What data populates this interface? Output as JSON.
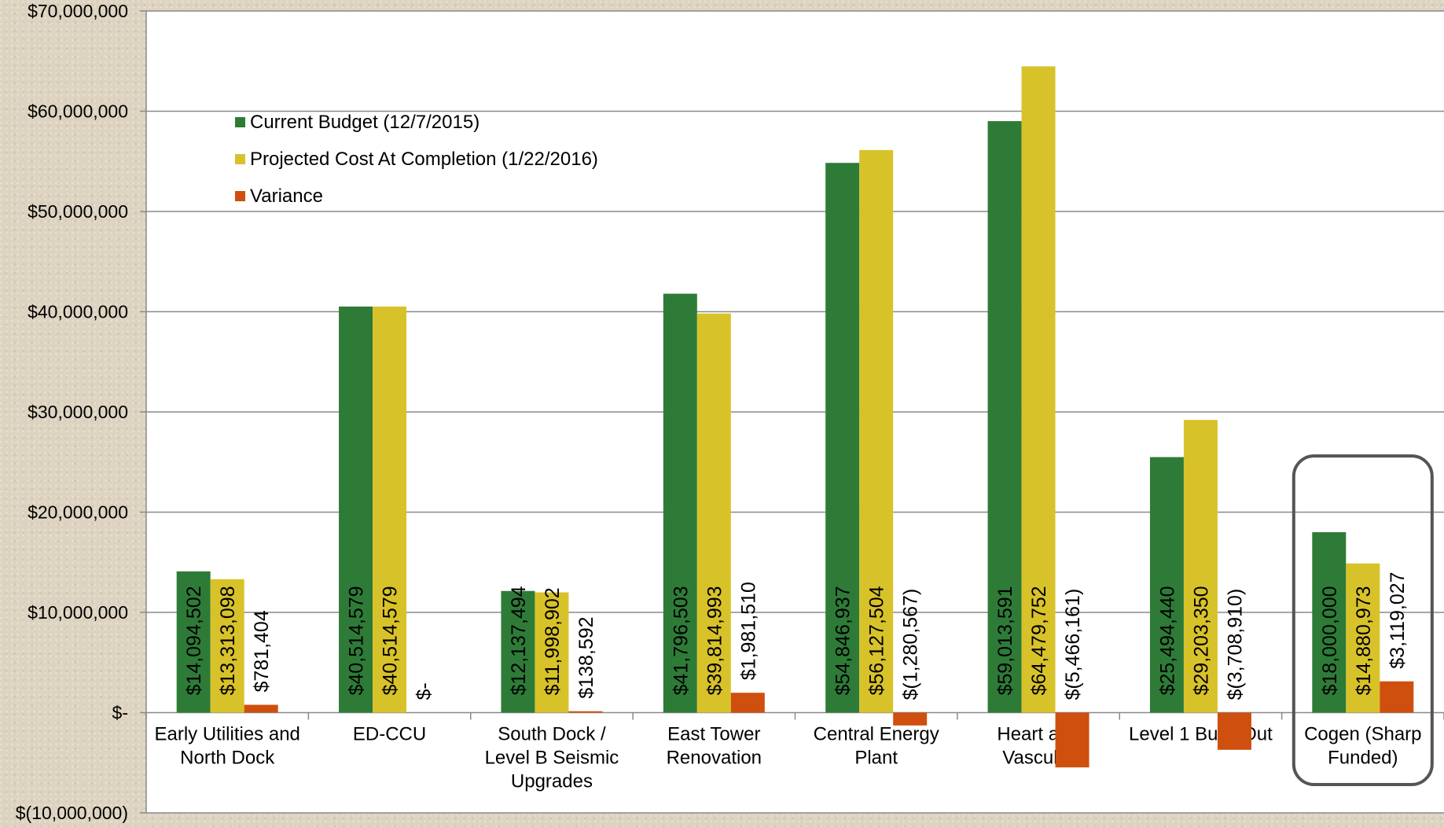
{
  "chart_data": {
    "type": "bar",
    "title": "",
    "xlabel": "",
    "ylabel": "",
    "ylim": [
      -10000000,
      70000000
    ],
    "y_ticks": [
      {
        "value": 70000000,
        "label": "$70,000,000"
      },
      {
        "value": 60000000,
        "label": "$60,000,000"
      },
      {
        "value": 50000000,
        "label": "$50,000,000"
      },
      {
        "value": 40000000,
        "label": "$40,000,000"
      },
      {
        "value": 30000000,
        "label": "$30,000,000"
      },
      {
        "value": 20000000,
        "label": "$20,000,000"
      },
      {
        "value": 10000000,
        "label": "$10,000,000"
      },
      {
        "value": 0,
        "label": "$-"
      },
      {
        "value": -10000000,
        "label": "$(10,000,000)"
      }
    ],
    "grid": true,
    "legend_position": "top-left",
    "categories": [
      [
        "Early Utilities and",
        "North Dock"
      ],
      [
        "ED-CCU"
      ],
      [
        "South Dock /",
        "Level B Seismic",
        "Upgrades"
      ],
      [
        "East Tower",
        "Renovation"
      ],
      [
        "Central Energy",
        "Plant"
      ],
      [
        "Heart and",
        "Vascular"
      ],
      [
        "Level 1 Build Out"
      ],
      [
        "Cogen (Sharp",
        "Funded)"
      ]
    ],
    "series": [
      {
        "name": "Current Budget (12/7/2015)",
        "color": "#2e7b38",
        "values": [
          14094502,
          40514579,
          12137494,
          41796503,
          54846937,
          59013591,
          25494440,
          18000000
        ],
        "labels": [
          "$14,094,502",
          "$40,514,579",
          "$12,137,494",
          "$41,796,503",
          "$54,846,937",
          "$59,013,591",
          "$25,494,440",
          "$18,000,000"
        ]
      },
      {
        "name": "Projected Cost At Completion (1/22/2016)",
        "color": "#d8c22a",
        "values": [
          13313098,
          40514579,
          11998902,
          39814993,
          56127504,
          64479752,
          29203350,
          14880973
        ],
        "labels": [
          "$13,313,098",
          "$40,514,579",
          "$11,998,902",
          "$39,814,993",
          "$56,127,504",
          "$64,479,752",
          "$29,203,350",
          "$14,880,973"
        ]
      },
      {
        "name": "Variance",
        "color": "#cf4f0e",
        "values": [
          781404,
          0,
          138592,
          1981510,
          -1280567,
          -5466161,
          -3708910,
          3119027
        ],
        "labels": [
          "$781,404",
          "$-",
          "$138,592",
          "$1,981,510",
          "$(1,280,567)",
          "$(5,466,161)",
          "$(3,708,910)",
          "$3,119,027"
        ]
      }
    ],
    "highlighted_category_index": 7
  }
}
